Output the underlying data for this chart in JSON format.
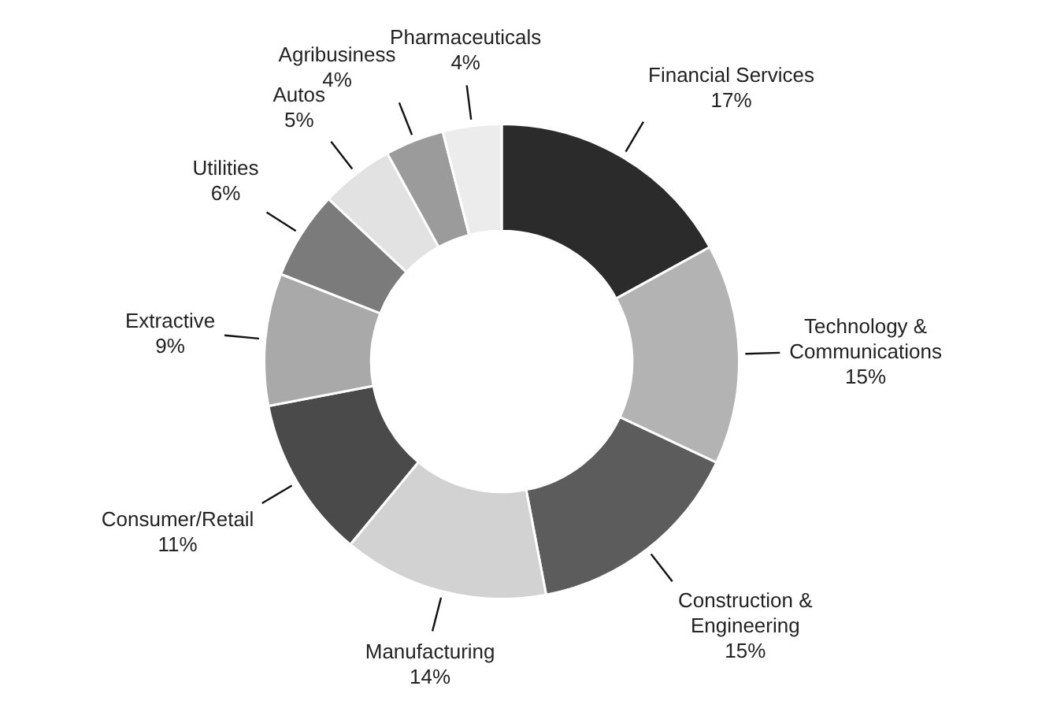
{
  "chart_data": {
    "type": "donut",
    "legend": false,
    "categories": [
      "Financial Services",
      "Technology & Communications",
      "Construction & Engineering",
      "Manufacturing",
      "Consumer/Retail",
      "Extractive",
      "Utilities",
      "Autos",
      "Agribusiness",
      "Pharmaceuticals"
    ],
    "values": [
      17,
      15,
      15,
      14,
      11,
      9,
      6,
      5,
      4,
      4
    ],
    "value_labels": [
      "17%",
      "15%",
      "15%",
      "14%",
      "11%",
      "9%",
      "6%",
      "5%",
      "4%",
      "4%"
    ],
    "colors": [
      "#2b2b2b",
      "#b3b3b3",
      "#5c5c5c",
      "#d2d2d2",
      "#4a4a4a",
      "#a9a9a9",
      "#7b7b7b",
      "#e2e2e2",
      "#9b9b9b",
      "#ececec"
    ]
  }
}
